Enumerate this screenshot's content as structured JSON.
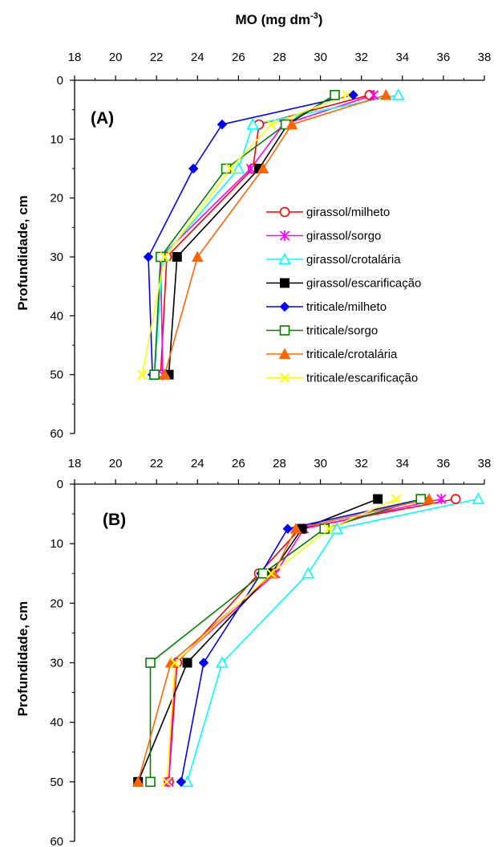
{
  "top_title": "MO (mg dm",
  "top_title_sup": "-3",
  "top_title_close": ")",
  "chart_data": [
    {
      "type": "line",
      "panel_label": "(A)",
      "title": "MO (mg dm-3)",
      "xlabel": "MO (mg dm-3)",
      "ylabel": "Profundidade, cm",
      "xlim": [
        18,
        38
      ],
      "ylim": [
        0,
        60
      ],
      "y_inverted": true,
      "x_axis_position": "top",
      "x_ticks": [
        18,
        20,
        22,
        24,
        26,
        28,
        30,
        32,
        34,
        36,
        38
      ],
      "y_ticks": [
        0,
        10,
        20,
        30,
        40,
        50,
        60
      ],
      "grid": false,
      "legend_position": "middle-right",
      "series": [
        {
          "name": "girassol/milheto",
          "color": "#ff0000",
          "marker": "circle-open",
          "x": [
            32.4,
            27.0,
            26.7,
            22.5,
            22.2
          ],
          "y": [
            2.5,
            7.5,
            15,
            30,
            50
          ]
        },
        {
          "name": "girassol/sorgo",
          "color": "#ff00ff",
          "marker": "asterisk",
          "x": [
            32.6,
            28.2,
            26.6,
            22.2,
            22.3
          ],
          "y": [
            2.5,
            7.5,
            15,
            30,
            50
          ]
        },
        {
          "name": "girassol/crotalária",
          "color": "#00ffff",
          "marker": "triangle-open",
          "x": [
            33.8,
            26.7,
            26.0,
            22.3,
            21.9
          ],
          "y": [
            2.5,
            7.5,
            15,
            30,
            50
          ]
        },
        {
          "name": "girassol/escarificação",
          "color": "#000000",
          "marker": "square-filled",
          "x": [
            30.7,
            28.4,
            27.0,
            23.0,
            22.6
          ],
          "y": [
            2.5,
            7.5,
            15,
            30,
            50
          ]
        },
        {
          "name": "triticale/milheto",
          "color": "#0000ff",
          "marker": "diamond-filled",
          "x": [
            31.6,
            25.2,
            23.8,
            21.6,
            21.8
          ],
          "y": [
            2.5,
            7.5,
            15,
            30,
            50
          ]
        },
        {
          "name": "triticale/sorgo",
          "color": "#008000",
          "marker": "square-open",
          "x": [
            30.7,
            28.3,
            25.4,
            22.2,
            21.9
          ],
          "y": [
            2.5,
            7.5,
            15,
            30,
            50
          ]
        },
        {
          "name": "triticale/crotalária",
          "color": "#ff6600",
          "marker": "triangle-filled",
          "x": [
            33.2,
            28.6,
            27.2,
            24.0,
            22.4
          ],
          "y": [
            2.5,
            7.5,
            15,
            30,
            50
          ]
        },
        {
          "name": "triticale/escarificação",
          "color": "#ffff00",
          "marker": "x",
          "x": [
            31.3,
            27.6,
            25.6,
            22.4,
            21.3
          ],
          "y": [
            2.5,
            7.5,
            15,
            30,
            50
          ]
        }
      ]
    },
    {
      "type": "line",
      "panel_label": "(B)",
      "xlabel": "MO (mg dm-3)",
      "ylabel": "Profundidade, cm",
      "xlim": [
        18,
        38
      ],
      "ylim": [
        0,
        60
      ],
      "y_inverted": true,
      "x_axis_position": "top",
      "x_ticks": [
        18,
        20,
        22,
        24,
        26,
        28,
        30,
        32,
        34,
        36,
        38
      ],
      "y_ticks": [
        0,
        10,
        20,
        30,
        40,
        50,
        60
      ],
      "grid": false,
      "series": [
        {
          "name": "girassol/milheto",
          "color": "#ff0000",
          "marker": "circle-open",
          "x": [
            36.6,
            29.0,
            27.0,
            23.0,
            22.6
          ],
          "y": [
            2.5,
            7.5,
            15,
            30,
            50
          ]
        },
        {
          "name": "girassol/sorgo",
          "color": "#ff00ff",
          "marker": "asterisk",
          "x": [
            35.9,
            29.2,
            27.8,
            22.9,
            22.6
          ],
          "y": [
            2.5,
            7.5,
            15,
            30,
            50
          ]
        },
        {
          "name": "girassol/crotalária",
          "color": "#00ffff",
          "marker": "triangle-open",
          "x": [
            37.7,
            30.8,
            29.4,
            25.2,
            23.5
          ],
          "y": [
            2.5,
            7.5,
            15,
            30,
            50
          ]
        },
        {
          "name": "girassol/escarificação",
          "color": "#000000",
          "marker": "square-filled",
          "x": [
            32.8,
            29.1,
            27.6,
            23.5,
            21.1
          ],
          "y": [
            2.5,
            7.5,
            15,
            30,
            50
          ]
        },
        {
          "name": "triticale/milheto",
          "color": "#0000ff",
          "marker": "diamond-filled",
          "x": [
            35.0,
            28.4,
            27.1,
            24.3,
            23.2
          ],
          "y": [
            2.5,
            7.5,
            15,
            30,
            50
          ]
        },
        {
          "name": "triticale/sorgo",
          "color": "#008000",
          "marker": "square-open",
          "x": [
            34.9,
            30.2,
            27.2,
            21.7,
            21.7
          ],
          "y": [
            2.5,
            7.5,
            15,
            30,
            50
          ]
        },
        {
          "name": "triticale/crotalária",
          "color": "#ff6600",
          "marker": "triangle-filled",
          "x": [
            35.3,
            28.8,
            27.7,
            22.7,
            21.1
          ],
          "y": [
            2.5,
            7.5,
            15,
            30,
            50
          ]
        },
        {
          "name": "triticale/escarificação",
          "color": "#ffff00",
          "marker": "x",
          "x": [
            33.7,
            30.4,
            27.6,
            22.9,
            22.5
          ],
          "y": [
            2.5,
            7.5,
            15,
            30,
            50
          ]
        }
      ]
    }
  ]
}
